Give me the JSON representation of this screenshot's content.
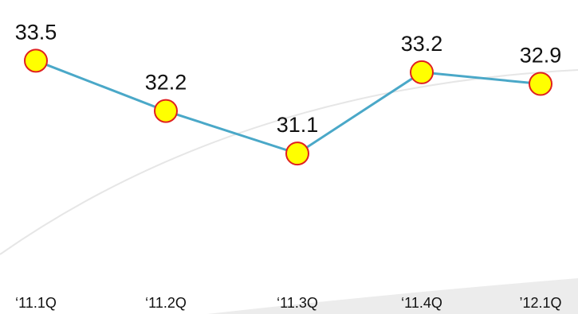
{
  "chart_data": {
    "type": "line",
    "title": "",
    "xlabel": "",
    "ylabel": "",
    "categories": [
      "‘11.1Q",
      "‘11.2Q",
      "‘11.3Q",
      "‘11.4Q",
      "’12.1Q"
    ],
    "series": [
      {
        "values": [
          33.5,
          32.2,
          31.1,
          33.2,
          32.9
        ],
        "labels": [
          "33.5",
          "32.2",
          "31.1",
          "33.2",
          "32.9"
        ]
      }
    ],
    "ylim": [
      28.0,
      34.0
    ],
    "grid": false,
    "legend": "none",
    "colors": {
      "line": "#4aa8c8",
      "marker_fill": "#ffff00",
      "marker_stroke": "#e02020",
      "decor_curve": "#e6e6e6"
    }
  }
}
